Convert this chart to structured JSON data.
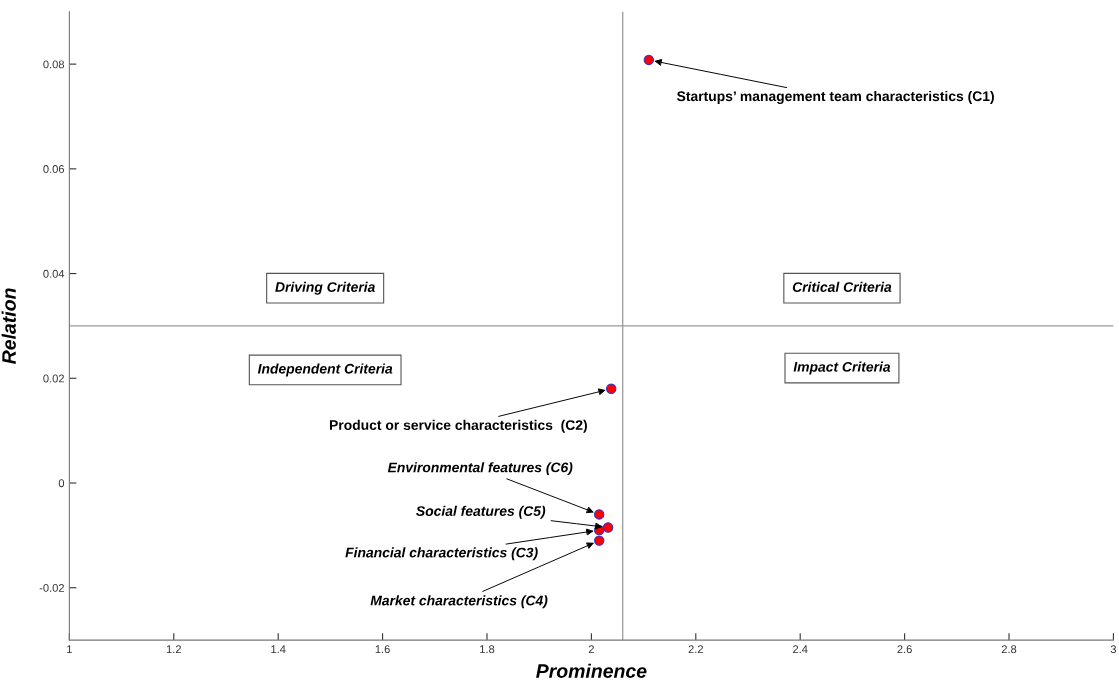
{
  "chart_data": {
    "type": "scatter",
    "xlabel": "Prominence",
    "ylabel": "Relation",
    "xlim": [
      1,
      3
    ],
    "ylim": [
      -0.03,
      0.09
    ],
    "xticks": [
      1,
      1.2,
      1.4,
      1.6,
      1.8,
      2,
      2.2,
      2.4,
      2.6,
      2.8,
      3
    ],
    "yticks": [
      -0.02,
      0,
      0.02,
      0.04,
      0.06,
      0.08
    ],
    "grid": false,
    "marker": "circle",
    "series": [
      {
        "color": "#ff0000",
        "x": [
          2.11,
          2.038,
          2.015,
          2.032,
          2.015,
          2.015
        ],
        "values": [
          0.0808,
          0.018,
          -0.006,
          -0.0085,
          -0.009,
          -0.011
        ]
      }
    ],
    "ref_lines": [
      {
        "axis": "x",
        "value": 2.06,
        "color": "#999999"
      },
      {
        "axis": "y",
        "value": 0.03,
        "color": "#999999"
      }
    ],
    "annotations": [
      {
        "text": "Startups’ management team characteristics (C1)",
        "x": 2.11,
        "y": 0.0808
      },
      {
        "text": "Product or service characteristics  (C2)",
        "x": 2.038,
        "y": 0.018
      },
      {
        "text": "Environmental features (C6)",
        "x": 2.015,
        "y": -0.006
      },
      {
        "text": "Social features (C5)",
        "x": 2.032,
        "y": -0.0085
      },
      {
        "text": "Financial characteristics (C3)",
        "x": 2.015,
        "y": -0.009
      },
      {
        "text": "Market characteristics (C4)",
        "x": 2.015,
        "y": -0.011
      },
      "Driving Criteria",
      "Critical Criteria",
      "Independent Criteria",
      "Impact Criteria"
    ]
  }
}
